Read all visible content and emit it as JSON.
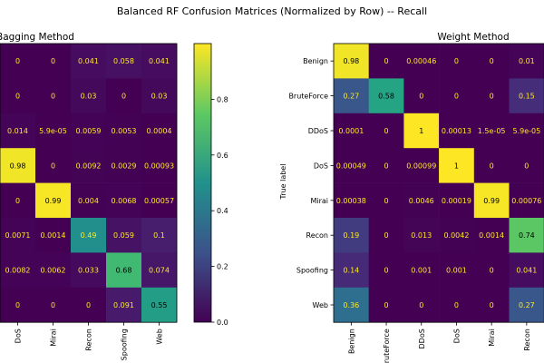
{
  "title": "Balanced RF Confusion Matrices (Normalized by Row) -- Recall",
  "colormap": "viridis",
  "colorbar": {
    "min": 0.0,
    "max": 1.0,
    "ticks": [
      "0.0",
      "0.2",
      "0.4",
      "0.6",
      "0.8"
    ]
  },
  "chart_data": [
    {
      "type": "heatmap",
      "title": "Bagging Method",
      "ylabel": "",
      "xlabels": [
        "DoS",
        "Mirai",
        "Recon",
        "Spoofing",
        "Web"
      ],
      "values": [
        [
          0,
          0,
          0.041,
          0.058,
          0.041
        ],
        [
          0,
          0,
          0.03,
          0,
          0.03
        ],
        [
          0.014,
          5.9e-05,
          0.0059,
          0.0053,
          0.0004
        ],
        [
          0.98,
          0,
          0.0092,
          0.0029,
          0.00093
        ],
        [
          0,
          0.99,
          0.004,
          0.0068,
          0.00057
        ],
        [
          0.0071,
          0.0014,
          0.49,
          0.059,
          0.1
        ],
        [
          0.0082,
          0.0062,
          0.033,
          0.68,
          0.074
        ],
        [
          0,
          0,
          0,
          0.091,
          0.55
        ]
      ],
      "labels": [
        [
          "0",
          "0",
          "0.041",
          "0.058",
          "0.041"
        ],
        [
          "0",
          "0",
          "0.03",
          "0",
          "0.03"
        ],
        [
          "0.014",
          "5.9e-05",
          "0.0059",
          "0.0053",
          "0.0004"
        ],
        [
          "0.98",
          "0",
          "0.0092",
          "0.0029",
          "0.00093"
        ],
        [
          "0",
          "0.99",
          "0.004",
          "0.0068",
          "0.00057"
        ],
        [
          "0.0071",
          "0.0014",
          "0.49",
          "0.059",
          "0.1"
        ],
        [
          "0.0082",
          "0.0062",
          "0.033",
          "0.68",
          "0.074"
        ],
        [
          "0",
          "0",
          "0",
          "0.091",
          "0.55"
        ]
      ]
    },
    {
      "type": "heatmap",
      "title": "Weight Method",
      "ylabel": "True label",
      "ylabels": [
        "Benign",
        "BruteForce",
        "DDoS",
        "DoS",
        "Mirai",
        "Recon",
        "Spoofing",
        "Web"
      ],
      "xlabels": [
        "Benign",
        "BruteForce",
        "DDoS",
        "DoS",
        "Mirai",
        "Recon"
      ],
      "values": [
        [
          0.98,
          0,
          0.00046,
          0,
          0,
          0.01
        ],
        [
          0.27,
          0.58,
          0,
          0,
          0,
          0.15
        ],
        [
          0.0001,
          0,
          1,
          0.00013,
          1.5e-05,
          5.9e-05
        ],
        [
          0.00049,
          0,
          0.00099,
          1,
          0,
          0
        ],
        [
          0.00038,
          0,
          0.0046,
          0.00019,
          0.99,
          0.00076
        ],
        [
          0.19,
          0,
          0.013,
          0.0042,
          0.0014,
          0.74
        ],
        [
          0.14,
          0,
          0.001,
          0.001,
          0,
          0.041
        ],
        [
          0.36,
          0,
          0,
          0,
          0,
          0.27
        ]
      ],
      "labels": [
        [
          "0.98",
          "0",
          "0.00046",
          "0",
          "0",
          "0.01"
        ],
        [
          "0.27",
          "0.58",
          "0",
          "0",
          "0",
          "0.15"
        ],
        [
          "0.0001",
          "0",
          "1",
          "0.00013",
          "1.5e-05",
          "5.9e-05"
        ],
        [
          "0.00049",
          "0",
          "0.00099",
          "1",
          "0",
          "0"
        ],
        [
          "0.00038",
          "0",
          "0.0046",
          "0.00019",
          "0.99",
          "0.00076"
        ],
        [
          "0.19",
          "0",
          "0.013",
          "0.0042",
          "0.0014",
          "0.74"
        ],
        [
          "0.14",
          "0",
          "0.001",
          "0.001",
          "0",
          "0.041"
        ],
        [
          "0.36",
          "0",
          "0",
          "0",
          "0",
          "0.27"
        ]
      ]
    }
  ]
}
